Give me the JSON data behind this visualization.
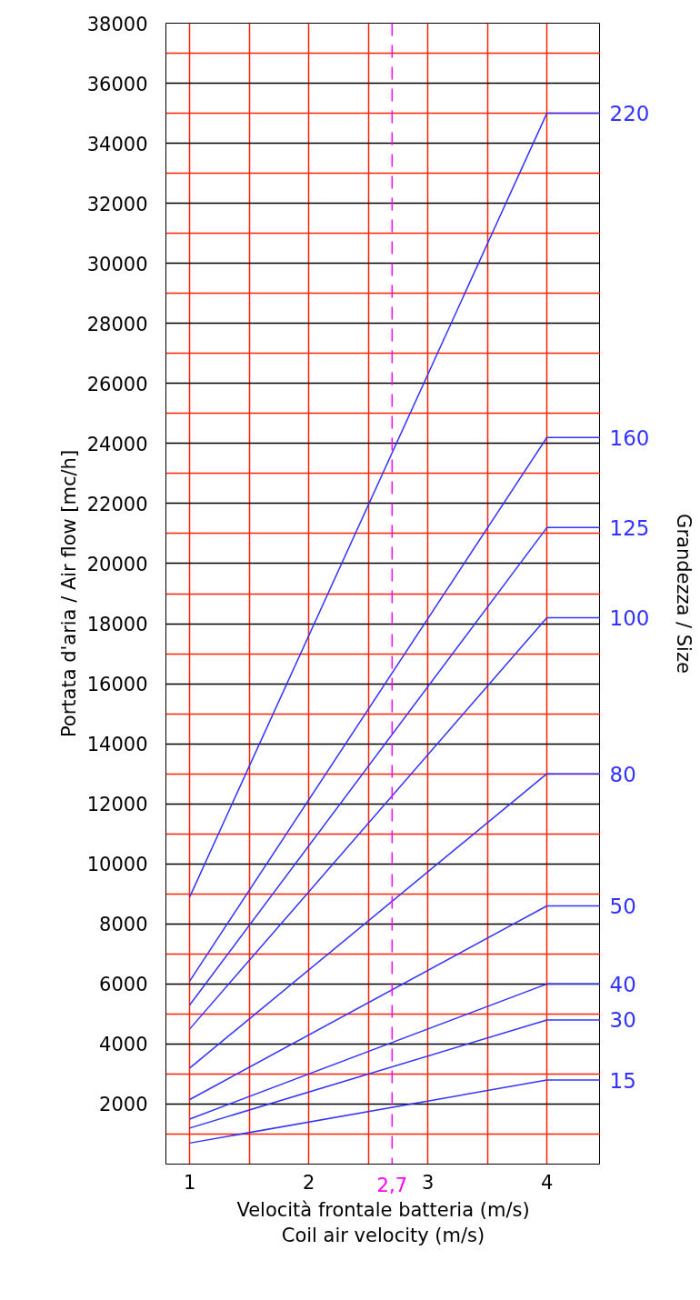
{
  "chart_data": {
    "type": "line",
    "xlabel": "Velocità frontale batteria (m/s)\nCoil air velocity (m/s)",
    "ylabel": "Portata d'aria / Air flow [mc/h]",
    "y2label": "Grandezza / Size",
    "xlim": [
      0.8,
      4.45
    ],
    "xticks": [
      1,
      2,
      3,
      4
    ],
    "ylim": [
      0,
      38000
    ],
    "yticks": [
      2000,
      4000,
      6000,
      8000,
      10000,
      12000,
      14000,
      16000,
      18000,
      20000,
      22000,
      24000,
      26000,
      28000,
      30000,
      32000,
      34000,
      36000,
      38000
    ],
    "grid": true,
    "marker": "none",
    "line_style": "solid",
    "ref_lines": [
      {
        "axis": "x",
        "value": 2.7,
        "label": "2,7",
        "color": "#ff00ff",
        "line_style": "dashed"
      }
    ],
    "series": [
      {
        "name": "220",
        "color": "#3333ff",
        "x": [
          1,
          4,
          4.45
        ],
        "values": [
          8900,
          35000,
          35000
        ]
      },
      {
        "name": "160",
        "color": "#3333ff",
        "x": [
          1,
          4,
          4.45
        ],
        "values": [
          6100,
          24200,
          24200
        ]
      },
      {
        "name": "125",
        "color": "#3333ff",
        "x": [
          1,
          4,
          4.45
        ],
        "values": [
          5300,
          21200,
          21200
        ]
      },
      {
        "name": "100",
        "color": "#3333ff",
        "x": [
          1,
          4,
          4.45
        ],
        "values": [
          4500,
          18200,
          18200
        ]
      },
      {
        "name": "80",
        "color": "#3333ff",
        "x": [
          1,
          4,
          4.45
        ],
        "values": [
          3200,
          13000,
          13000
        ]
      },
      {
        "name": "50",
        "color": "#3333ff",
        "x": [
          1,
          4,
          4.45
        ],
        "values": [
          2150,
          8600,
          8600
        ]
      },
      {
        "name": "40",
        "color": "#3333ff",
        "x": [
          1,
          4,
          4.45
        ],
        "values": [
          1500,
          6000,
          6000
        ]
      },
      {
        "name": "30",
        "color": "#3333ff",
        "x": [
          1,
          4,
          4.45
        ],
        "values": [
          1200,
          4800,
          4800
        ]
      },
      {
        "name": "15",
        "color": "#3333ff",
        "x": [
          1,
          4,
          4.45
        ],
        "values": [
          700,
          2800,
          2800
        ]
      }
    ]
  }
}
